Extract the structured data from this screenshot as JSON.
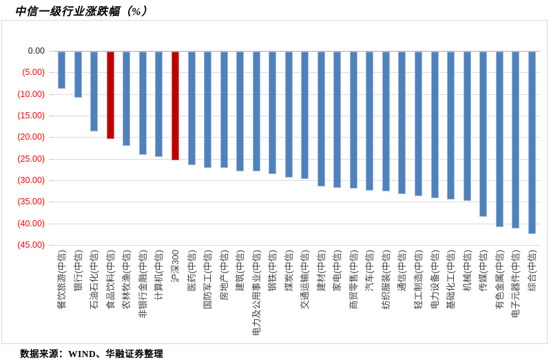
{
  "chart_data": {
    "type": "bar",
    "title": "中信一级行业涨跌幅（%）",
    "orientation": "vertical",
    "categories": [
      "餐饮旅游(中信)",
      "银行(中信)",
      "石油石化(中信)",
      "食品饮料(中信)",
      "农林牧渔(中信)",
      "非银行金融(中信)",
      "计算机(中信)",
      "沪深300",
      "医药(中信)",
      "国防军工(中信)",
      "房地产(中信)",
      "建筑(中信)",
      "电力及公用事业(中信)",
      "钢铁(中信)",
      "煤炭(中信)",
      "交通运输(中信)",
      "建材(中信)",
      "家电(中信)",
      "商贸零售(中信)",
      "汽车(中信)",
      "纺织服装(中信)",
      "通信(中信)",
      "轻工制造(中信)",
      "电力设备(中信)",
      "基础化工(中信)",
      "机械(中信)",
      "传媒(中信)",
      "有色金属(中信)",
      "电子元器件(中信)",
      "综合(中信)"
    ],
    "values": [
      -8.7,
      -10.9,
      -18.7,
      -20.4,
      -22.0,
      -24.1,
      -24.6,
      -25.3,
      -26.5,
      -27.1,
      -27.1,
      -27.9,
      -28.0,
      -28.6,
      -29.3,
      -29.7,
      -31.5,
      -31.8,
      -31.9,
      -32.4,
      -32.6,
      -33.2,
      -33.6,
      -34.1,
      -34.5,
      -34.8,
      -38.4,
      -40.9,
      -41.2,
      -42.4
    ],
    "highlight_indices": [
      3,
      7
    ],
    "bar_color": "#4F81BD",
    "highlight_color": "#C00000",
    "grid": true,
    "grid_color": "#D9D9D9",
    "ylim": [
      -45,
      0
    ],
    "ytick_step": 5,
    "ytick_labels": [
      "0.00",
      "(5.00)",
      "(10.00)",
      "(15.00)",
      "(20.00)",
      "(25.00)",
      "(30.00)",
      "(35.00)",
      "(40.00)",
      "(45.00)"
    ],
    "ytick_negative_color": "#FF0000",
    "ytick_zero_color": "#1A1A1A",
    "legend": "none"
  },
  "footer": {
    "source": "数据来源：WIND、华融证券整理"
  }
}
